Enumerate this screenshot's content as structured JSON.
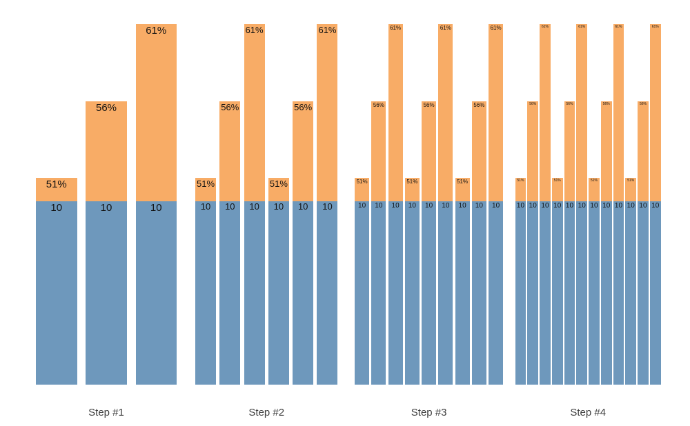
{
  "chart_data": {
    "type": "bar",
    "stacked": true,
    "title": "",
    "xlabel": "",
    "ylabel": "",
    "grid": false,
    "legend": null,
    "base_value": 10,
    "pct_values": [
      51,
      56,
      61
    ],
    "groups": [
      {
        "label": "Step #1",
        "bars": [
          {
            "base": 10,
            "base_label": "10",
            "pct": 51,
            "pct_label": "51%"
          },
          {
            "base": 10,
            "base_label": "10",
            "pct": 56,
            "pct_label": "56%"
          },
          {
            "base": 10,
            "base_label": "10",
            "pct": 61,
            "pct_label": "61%"
          }
        ]
      },
      {
        "label": "Step #2",
        "bars": [
          {
            "base": 10,
            "base_label": "10",
            "pct": 51,
            "pct_label": "51%"
          },
          {
            "base": 10,
            "base_label": "10",
            "pct": 56,
            "pct_label": "56%"
          },
          {
            "base": 10,
            "base_label": "10",
            "pct": 61,
            "pct_label": "61%"
          },
          {
            "base": 10,
            "base_label": "10",
            "pct": 51,
            "pct_label": "51%"
          },
          {
            "base": 10,
            "base_label": "10",
            "pct": 56,
            "pct_label": "56%"
          },
          {
            "base": 10,
            "base_label": "10",
            "pct": 61,
            "pct_label": "61%"
          }
        ]
      },
      {
        "label": "Step #3",
        "bars": [
          {
            "base": 10,
            "base_label": "10",
            "pct": 51,
            "pct_label": "51%"
          },
          {
            "base": 10,
            "base_label": "10",
            "pct": 56,
            "pct_label": "56%"
          },
          {
            "base": 10,
            "base_label": "10",
            "pct": 61,
            "pct_label": "61%"
          },
          {
            "base": 10,
            "base_label": "10",
            "pct": 51,
            "pct_label": "51%"
          },
          {
            "base": 10,
            "base_label": "10",
            "pct": 56,
            "pct_label": "56%"
          },
          {
            "base": 10,
            "base_label": "10",
            "pct": 61,
            "pct_label": "61%"
          },
          {
            "base": 10,
            "base_label": "10",
            "pct": 51,
            "pct_label": "51%"
          },
          {
            "base": 10,
            "base_label": "10",
            "pct": 56,
            "pct_label": "56%"
          },
          {
            "base": 10,
            "base_label": "10",
            "pct": 61,
            "pct_label": "61%"
          }
        ]
      },
      {
        "label": "Step #4",
        "bars": [
          {
            "base": 10,
            "base_label": "10",
            "pct": 51,
            "pct_label": "51%"
          },
          {
            "base": 10,
            "base_label": "10",
            "pct": 56,
            "pct_label": "56%"
          },
          {
            "base": 10,
            "base_label": "10",
            "pct": 61,
            "pct_label": "61%"
          },
          {
            "base": 10,
            "base_label": "10",
            "pct": 51,
            "pct_label": "51%"
          },
          {
            "base": 10,
            "base_label": "10",
            "pct": 56,
            "pct_label": "56%"
          },
          {
            "base": 10,
            "base_label": "10",
            "pct": 61,
            "pct_label": "61%"
          },
          {
            "base": 10,
            "base_label": "10",
            "pct": 51,
            "pct_label": "51%"
          },
          {
            "base": 10,
            "base_label": "10",
            "pct": 56,
            "pct_label": "56%"
          },
          {
            "base": 10,
            "base_label": "10",
            "pct": 61,
            "pct_label": "61%"
          },
          {
            "base": 10,
            "base_label": "10",
            "pct": 51,
            "pct_label": "51%"
          },
          {
            "base": 10,
            "base_label": "10",
            "pct": 56,
            "pct_label": "56%"
          },
          {
            "base": 10,
            "base_label": "10",
            "pct": 61,
            "pct_label": "61%"
          }
        ]
      }
    ],
    "colors": {
      "base_segment": "#6E98BC",
      "pct_segment": "#F8AC66",
      "bar_label": "#111111",
      "group_label": "#3F3F3F",
      "background": "#FFFFFF"
    }
  }
}
